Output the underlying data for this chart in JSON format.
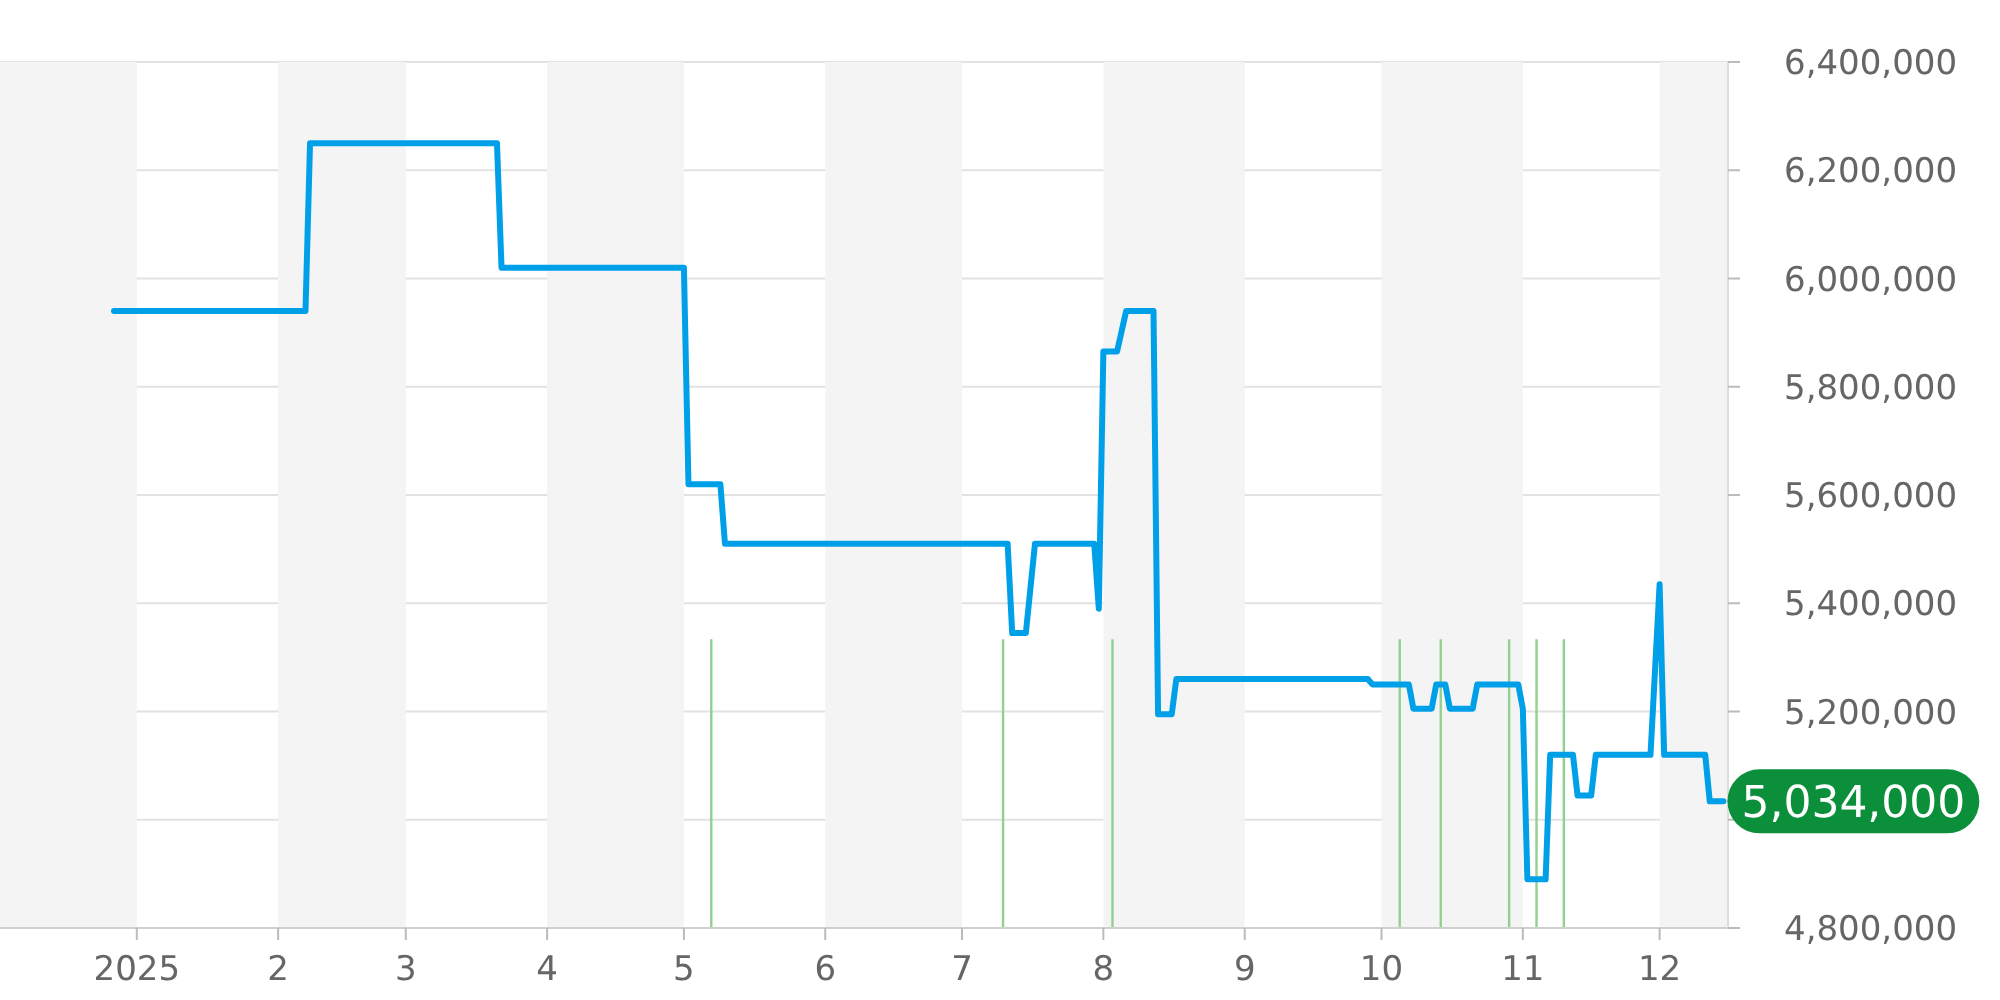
{
  "chart_data": {
    "type": "line",
    "x": [
      "2024-12-27",
      "2025-02-07",
      "2025-02-08",
      "2025-03-21",
      "2025-03-22",
      "2025-05-01",
      "2025-05-02",
      "2025-05-09",
      "2025-05-10",
      "2025-07-11",
      "2025-07-12",
      "2025-07-15",
      "2025-07-17",
      "2025-07-30",
      "2025-07-31",
      "2025-08-01",
      "2025-08-04",
      "2025-08-06",
      "2025-08-12",
      "2025-08-13",
      "2025-08-16",
      "2025-08-17",
      "2025-09-28",
      "2025-09-29",
      "2025-10-07",
      "2025-10-08",
      "2025-10-12",
      "2025-10-13",
      "2025-10-15",
      "2025-10-16",
      "2025-10-21",
      "2025-10-22",
      "2025-10-31",
      "2025-11-01",
      "2025-11-02",
      "2025-11-06",
      "2025-11-07",
      "2025-11-12",
      "2025-11-13",
      "2025-11-16",
      "2025-11-17",
      "2025-11-29",
      "2025-12-01",
      "2025-12-02",
      "2025-12-11",
      "2025-12-12",
      "2025-12-15"
    ],
    "values": [
      5940000,
      5940000,
      6250000,
      6250000,
      6020000,
      6020000,
      5620000,
      5620000,
      5510000,
      5510000,
      5345000,
      5345000,
      5510000,
      5510000,
      5390000,
      5865000,
      5865000,
      5940000,
      5940000,
      5195000,
      5195000,
      5260000,
      5260000,
      5250000,
      5250000,
      5205000,
      5205000,
      5250000,
      5250000,
      5205000,
      5205000,
      5250000,
      5250000,
      5205000,
      4890000,
      4890000,
      5120000,
      5120000,
      5045000,
      5045000,
      5120000,
      5120000,
      5435000,
      5120000,
      5120000,
      5034000,
      5034000
    ],
    "color": "#00a0e9",
    "xlim": [
      "2024-12-02",
      "2025-12-16"
    ],
    "xticks": [
      {
        "value": "2025-01-01",
        "label": "2025"
      },
      {
        "value": "2025-02-01",
        "label": "2"
      },
      {
        "value": "2025-03-01",
        "label": "3"
      },
      {
        "value": "2025-04-01",
        "label": "4"
      },
      {
        "value": "2025-05-01",
        "label": "5"
      },
      {
        "value": "2025-06-01",
        "label": "6"
      },
      {
        "value": "2025-07-01",
        "label": "7"
      },
      {
        "value": "2025-08-01",
        "label": "8"
      },
      {
        "value": "2025-09-01",
        "label": "9"
      },
      {
        "value": "2025-10-01",
        "label": "10"
      },
      {
        "value": "2025-11-01",
        "label": "11"
      },
      {
        "value": "2025-12-01",
        "label": "12"
      }
    ],
    "ylim": [
      4800000,
      6400000
    ],
    "yticks": [
      {
        "value": 4800000,
        "label": "4,800,000"
      },
      {
        "value": 5000000,
        "label": null
      },
      {
        "value": 5200000,
        "label": "5,200,000"
      },
      {
        "value": 5400000,
        "label": "5,400,000"
      },
      {
        "value": 5600000,
        "label": "5,600,000"
      },
      {
        "value": 5800000,
        "label": "5,800,000"
      },
      {
        "value": 6000000,
        "label": "6,000,000"
      },
      {
        "value": 6200000,
        "label": "6,200,000"
      },
      {
        "value": 6400000,
        "label": "6,400,000"
      }
    ],
    "grid": "y",
    "bands": [
      {
        "axis": "x",
        "from": "2024-12-02",
        "to": "2025-01-01",
        "color": "#f4f4f4"
      },
      {
        "axis": "x",
        "from": "2025-02-01",
        "to": "2025-03-01",
        "color": "#f4f4f4"
      },
      {
        "axis": "x",
        "from": "2025-04-01",
        "to": "2025-05-01",
        "color": "#f4f4f4"
      },
      {
        "axis": "x",
        "from": "2025-06-01",
        "to": "2025-07-01",
        "color": "#f4f4f4"
      },
      {
        "axis": "x",
        "from": "2025-08-01",
        "to": "2025-09-01",
        "color": "#f4f4f4"
      },
      {
        "axis": "x",
        "from": "2025-10-01",
        "to": "2025-11-01",
        "color": "#f4f4f4"
      },
      {
        "axis": "x",
        "from": "2025-12-01",
        "to": "2025-12-16",
        "color": "#f4f4f4"
      }
    ],
    "ref_lines": [
      {
        "axis": "x",
        "value": "2025-05-07",
        "color": "#8fd18f"
      },
      {
        "axis": "x",
        "value": "2025-07-10",
        "color": "#8fd18f"
      },
      {
        "axis": "x",
        "value": "2025-08-03",
        "color": "#8fd18f"
      },
      {
        "axis": "x",
        "value": "2025-10-05",
        "color": "#8fd18f"
      },
      {
        "axis": "x",
        "value": "2025-10-14",
        "color": "#8fd18f"
      },
      {
        "axis": "x",
        "value": "2025-10-29",
        "color": "#8fd18f"
      },
      {
        "axis": "x",
        "value": "2025-11-04",
        "color": "#8fd18f"
      },
      {
        "axis": "x",
        "value": "2025-11-10",
        "color": "#8fd18f"
      }
    ],
    "annotations": [
      {
        "text": "5,034,000",
        "x": "2025-12-15",
        "y": 5034000
      }
    ]
  }
}
